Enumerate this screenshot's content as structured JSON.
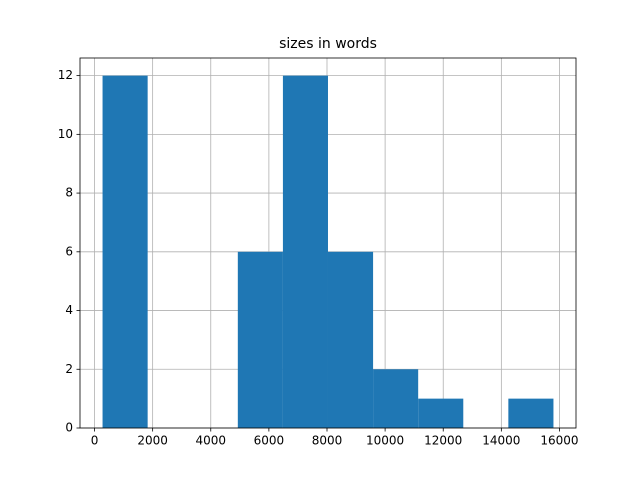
{
  "chart_data": {
    "type": "histogram",
    "title": "sizes in words",
    "bins": [
      276,
      1828,
      3380,
      4931,
      6483,
      8034,
      9586,
      11138,
      12690,
      14241,
      15793
    ],
    "counts": [
      12,
      0,
      0,
      6,
      12,
      6,
      2,
      1,
      0,
      1
    ],
    "color": "#1f77b4",
    "xlim": [
      -500,
      16569
    ],
    "xticks": [
      0,
      2000,
      4000,
      6000,
      8000,
      10000,
      12000,
      14000,
      16000
    ],
    "ylim": [
      0,
      12.6
    ],
    "yticks": [
      0,
      2,
      4,
      6,
      8,
      10,
      12
    ],
    "grid": true
  }
}
